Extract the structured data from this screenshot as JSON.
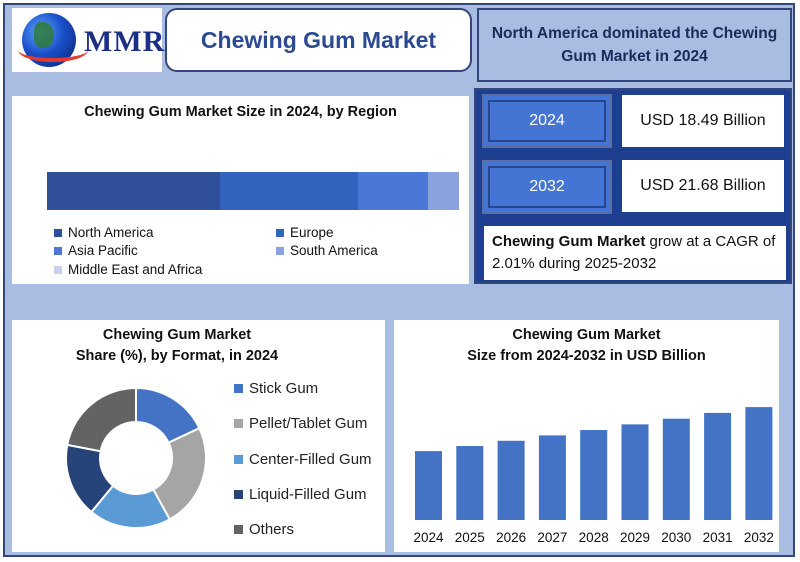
{
  "header": {
    "logo_text": "MMR",
    "title": "Chewing Gum Market",
    "headline": "North America dominated the Chewing Gum Market in 2024"
  },
  "stats": {
    "items": [
      {
        "year": "2024",
        "value": "USD 18.49 Billion"
      },
      {
        "year": "2032",
        "value": "USD 21.68 Billion"
      }
    ],
    "cagr_bold": "Chewing Gum  Market",
    "cagr_rest": " grow at a CAGR of 2.01% during 2025-2032"
  },
  "colors": {
    "north_america": "#2f4f98",
    "europe": "#3463bf",
    "asia_pacific": "#4b78d6",
    "south_america": "#8aa3de",
    "middle_east_africa": "#c7d2ef",
    "stick_gum": "#4472c4",
    "pellet_tablet_gum": "#a5a5a5",
    "center_filled_gum": "#5b9bd5",
    "liquid_filled_gum": "#264478",
    "others": "#636363",
    "bar": "#4472c4"
  },
  "chart_data": [
    {
      "type": "bar",
      "title": "Chewing Gum Market Size in 2024, by Region",
      "orientation": "horizontal-stacked",
      "series": [
        {
          "name": "North America",
          "value": 42
        },
        {
          "name": "Europe",
          "value": 33.5
        },
        {
          "name": "Asia Pacific",
          "value": 17
        },
        {
          "name": "South America",
          "value": 7.5
        },
        {
          "name": "Middle East and Africa",
          "value": 0
        }
      ],
      "legend": "bottom"
    },
    {
      "type": "pie",
      "title_line1": "Chewing Gum  Market",
      "title_line2": "Share (%), by Format, in 2024",
      "donut": true,
      "slices": [
        {
          "name": "Stick Gum",
          "value": 18
        },
        {
          "name": "Pellet/Tablet Gum",
          "value": 24
        },
        {
          "name": "Center-Filled Gum",
          "value": 19
        },
        {
          "name": "Liquid-Filled Gum",
          "value": 17
        },
        {
          "name": "Others",
          "value": 22
        }
      ],
      "legend": "right"
    },
    {
      "type": "bar",
      "title_line1": "Chewing Gum  Market",
      "title_line2": "Size from 2024-2032 in USD Billion",
      "categories": [
        "2024",
        "2025",
        "2026",
        "2027",
        "2028",
        "2029",
        "2030",
        "2031",
        "2032"
      ],
      "values": [
        18.49,
        18.86,
        19.24,
        19.63,
        20.02,
        20.43,
        20.84,
        21.26,
        21.68
      ],
      "ylim": [
        13.5,
        23.5
      ],
      "grid": false
    }
  ]
}
